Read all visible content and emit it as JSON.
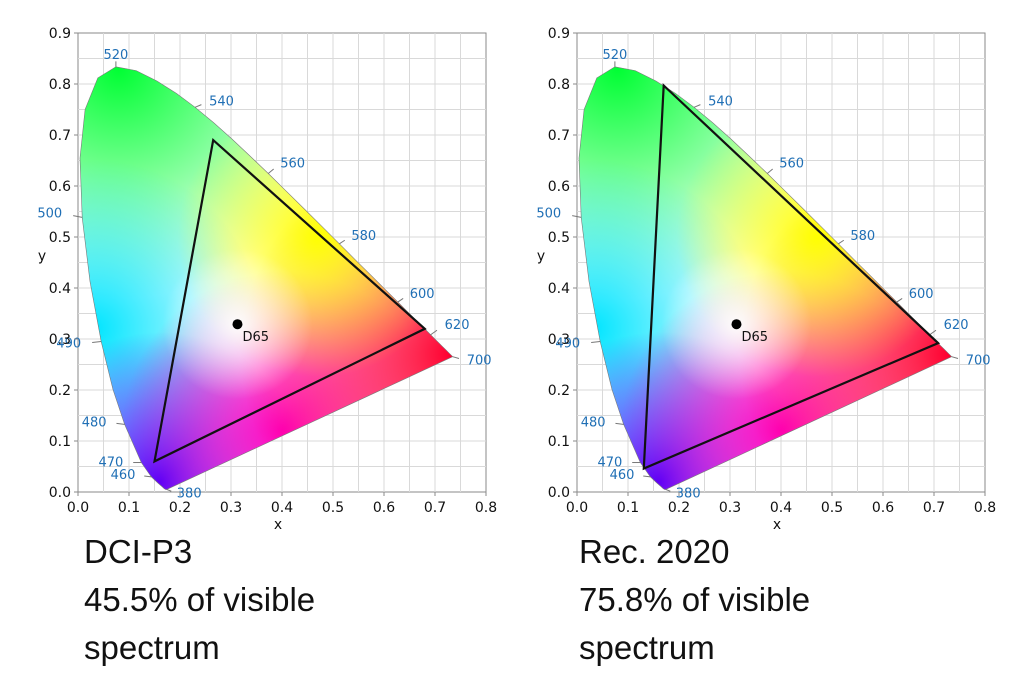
{
  "chart_data": [
    {
      "type": "scatter",
      "title": "",
      "xlabel": "x",
      "ylabel": "y",
      "xlim": [
        0.0,
        0.8
      ],
      "ylim": [
        0.0,
        0.9
      ],
      "grid": true,
      "x_ticks": [
        "0.0",
        "0.1",
        "0.2",
        "0.3",
        "0.4",
        "0.5",
        "0.6",
        "0.7",
        "0.8"
      ],
      "y_ticks": [
        "0.0",
        "0.1",
        "0.2",
        "0.3",
        "0.4",
        "0.5",
        "0.6",
        "0.7",
        "0.8",
        "0.9"
      ],
      "spectral_locus_labels": [
        {
          "nm": "380",
          "x": 0.1741,
          "y": 0.005
        },
        {
          "nm": "460",
          "x": 0.144,
          "y": 0.0297
        },
        {
          "nm": "470",
          "x": 0.1241,
          "y": 0.0578
        },
        {
          "nm": "480",
          "x": 0.0913,
          "y": 0.1327
        },
        {
          "nm": "490",
          "x": 0.0454,
          "y": 0.295
        },
        {
          "nm": "500",
          "x": 0.0082,
          "y": 0.5384
        },
        {
          "nm": "520",
          "x": 0.0743,
          "y": 0.8338
        },
        {
          "nm": "540",
          "x": 0.2296,
          "y": 0.7543
        },
        {
          "nm": "560",
          "x": 0.3731,
          "y": 0.6245
        },
        {
          "nm": "580",
          "x": 0.5125,
          "y": 0.4866
        },
        {
          "nm": "600",
          "x": 0.627,
          "y": 0.3725
        },
        {
          "nm": "620",
          "x": 0.6915,
          "y": 0.3083
        },
        {
          "nm": "700",
          "x": 0.7347,
          "y": 0.2653
        }
      ],
      "white_point": {
        "name": "D65",
        "x": 0.3127,
        "y": 0.329
      },
      "gamut": {
        "name": "DCI-P3",
        "red": [
          0.68,
          0.32
        ],
        "green": [
          0.265,
          0.69
        ],
        "blue": [
          0.15,
          0.06
        ]
      },
      "caption": [
        "DCI-P3",
        "45.5% of visible",
        "spectrum"
      ]
    },
    {
      "type": "scatter",
      "title": "",
      "xlabel": "x",
      "ylabel": "y",
      "xlim": [
        0.0,
        0.8
      ],
      "ylim": [
        0.0,
        0.9
      ],
      "grid": true,
      "x_ticks": [
        "0.0",
        "0.1",
        "0.2",
        "0.3",
        "0.4",
        "0.5",
        "0.6",
        "0.7",
        "0.8"
      ],
      "y_ticks": [
        "0.0",
        "0.1",
        "0.2",
        "0.3",
        "0.4",
        "0.5",
        "0.6",
        "0.7",
        "0.8",
        "0.9"
      ],
      "spectral_locus_labels": [
        {
          "nm": "380",
          "x": 0.1741,
          "y": 0.005
        },
        {
          "nm": "460",
          "x": 0.144,
          "y": 0.0297
        },
        {
          "nm": "470",
          "x": 0.1241,
          "y": 0.0578
        },
        {
          "nm": "480",
          "x": 0.0913,
          "y": 0.1327
        },
        {
          "nm": "490",
          "x": 0.0454,
          "y": 0.295
        },
        {
          "nm": "500",
          "x": 0.0082,
          "y": 0.5384
        },
        {
          "nm": "520",
          "x": 0.0743,
          "y": 0.8338
        },
        {
          "nm": "540",
          "x": 0.2296,
          "y": 0.7543
        },
        {
          "nm": "560",
          "x": 0.3731,
          "y": 0.6245
        },
        {
          "nm": "580",
          "x": 0.5125,
          "y": 0.4866
        },
        {
          "nm": "600",
          "x": 0.627,
          "y": 0.3725
        },
        {
          "nm": "620",
          "x": 0.6915,
          "y": 0.3083
        },
        {
          "nm": "700",
          "x": 0.7347,
          "y": 0.2653
        }
      ],
      "white_point": {
        "name": "D65",
        "x": 0.3127,
        "y": 0.329
      },
      "gamut": {
        "name": "Rec. 2020",
        "red": [
          0.708,
          0.292
        ],
        "green": [
          0.17,
          0.797
        ],
        "blue": [
          0.131,
          0.046
        ]
      },
      "caption": [
        "Rec. 2020",
        "75.8% of visible",
        "spectrum"
      ]
    }
  ],
  "colors": {
    "grid": "#d9d9d9",
    "frame": "#8a8a8a",
    "tick_text": "#111111",
    "wavelength_label": "#1f6fb5",
    "gamut_stroke": "#111111",
    "white_point": "#000000"
  }
}
